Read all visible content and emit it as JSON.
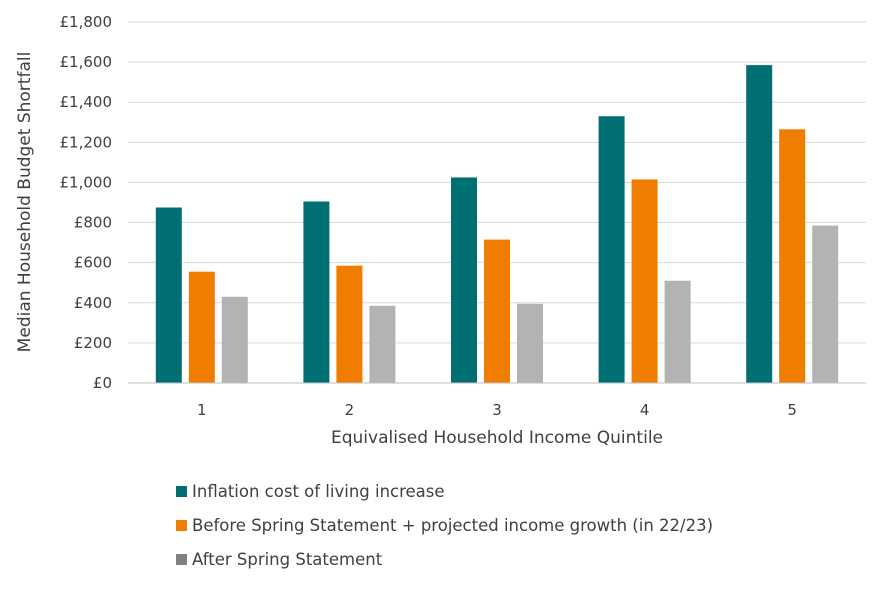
{
  "chart_data": {
    "type": "bar",
    "title": "",
    "xlabel": "Equivalised Household Income Quintile",
    "ylabel": "Median Household Budget Shortfall",
    "categories": [
      "1",
      "2",
      "3",
      "4",
      "5"
    ],
    "ylim": [
      0,
      1800
    ],
    "yticks": [
      0,
      200,
      400,
      600,
      800,
      1000,
      1200,
      1400,
      1600,
      1800
    ],
    "ytick_labels": [
      "£0",
      "£200",
      "£400",
      "£600",
      "£800",
      "£1,000",
      "£1,200",
      "£1,400",
      "£1,600",
      "£1,800"
    ],
    "grid": true,
    "legend_position": "bottom",
    "series": [
      {
        "name": "Inflation cost of living increase",
        "color": "#006f74",
        "values": [
          875,
          905,
          1025,
          1330,
          1585
        ]
      },
      {
        "name": "Before Spring Statement + projected income growth (in 22/23)",
        "color": "#f07d00",
        "values": [
          555,
          585,
          715,
          1015,
          1265
        ]
      },
      {
        "name": "After Spring Statement",
        "color": "#b3b3b3",
        "values": [
          430,
          385,
          395,
          510,
          785
        ]
      }
    ]
  }
}
